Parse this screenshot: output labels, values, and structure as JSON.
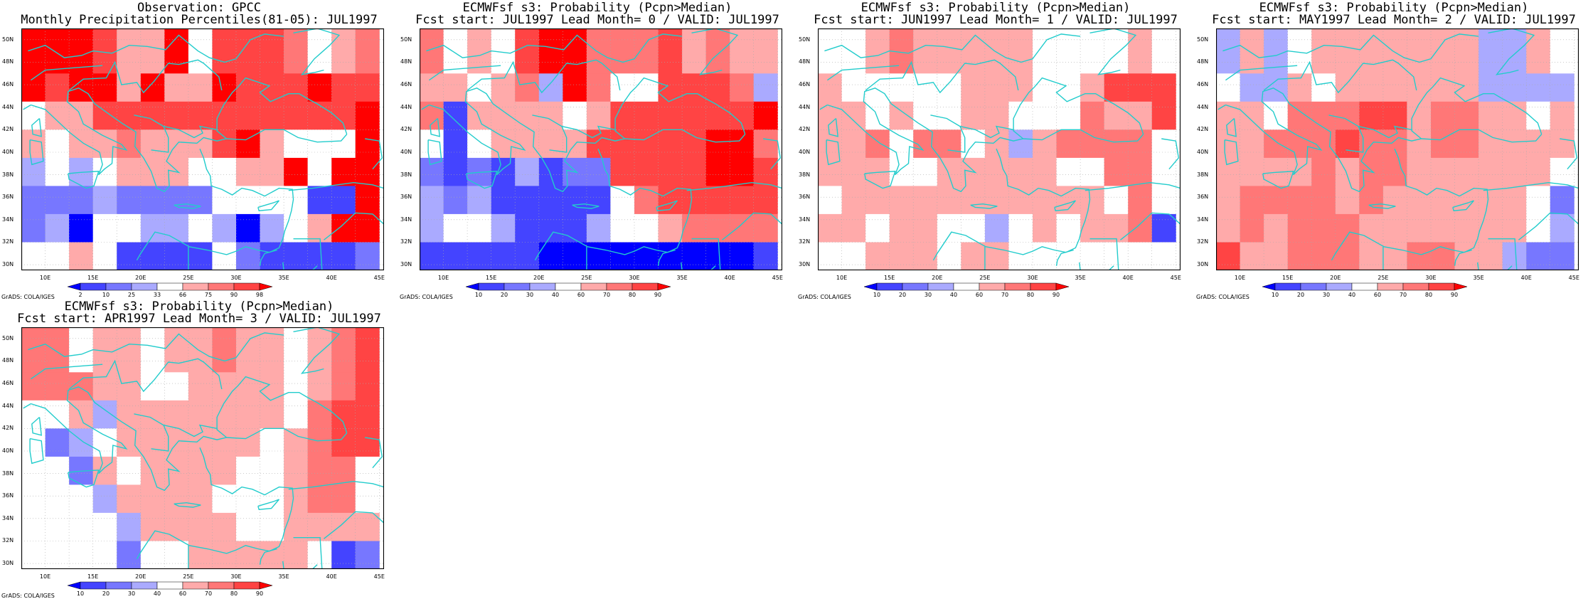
{
  "map_meta": {
    "lon_labels": [
      "10E",
      "15E",
      "20E",
      "25E",
      "30E",
      "35E",
      "40E",
      "45E"
    ],
    "lat_labels": [
      "50N",
      "48N",
      "46N",
      "44N",
      "42N",
      "40N",
      "38N",
      "36N",
      "34N",
      "32N",
      "30N"
    ],
    "credit": "GrADS: COLA/IGES",
    "cell_grid": {
      "columns": 15,
      "rows": 8,
      "lon_start_deg": 7.5,
      "lat_start_deg": 29.5
    }
  },
  "colorbars": {
    "observation": {
      "labels": [
        "2",
        "10",
        "25",
        "33",
        "66",
        "75",
        "90",
        "98"
      ],
      "colors": [
        "#0000ff",
        "#4444ff",
        "#7777ff",
        "#aaaaff",
        "#ffffff",
        "#ffaaaa",
        "#ff7777",
        "#ff4444",
        "#ff0000"
      ]
    },
    "probability": {
      "labels": [
        "10",
        "20",
        "30",
        "40",
        "60",
        "70",
        "80",
        "90"
      ],
      "colors": [
        "#0000ff",
        "#4444ff",
        "#7777ff",
        "#aaaaff",
        "#ffffff",
        "#ffaaaa",
        "#ff7777",
        "#ff4444",
        "#ff0000"
      ]
    }
  },
  "panels": [
    {
      "title1": "Observation: GPCC",
      "title2": "Monthly Precipitation Percentiles(81-05): JUL1997",
      "colorbar": "observation",
      "grid": [
        "888755847776456",
        "878858558777877",
        "455777777777778",
        "545565557854448",
        "343455544558488",
        "222322224444118",
        "230443343034588",
        "445411114211112"
      ]
    },
    {
      "title1": "ECMWFsf s3: Probability (Pcpn>Median)",
      "title2": "Fcst start: JUL1997  Lead Month= 0 / VALID: JUL1997",
      "colorbar": "probability",
      "grid": [
        "645478866675655",
        "554563864477763",
        "615555457777778",
        "414555577777886",
        "212131227777887",
        "323111114677777",
        "344311134456666",
        "111110000000001"
      ]
    },
    {
      "title1": "ECMWFsf s3: Probability (Pcpn>Median)",
      "title2": "Fcst start: JUN1997  Lead Month= 1 / VALID: JUL1997",
      "colorbar": "probability",
      "grid": [
        "445655555444454",
        "544444555445777",
        "554544554446557",
        "556466453566664",
        "555445555544664",
        "455555555555464",
        "554554434545561",
        "445554554444444"
      ]
    },
    {
      "title1": "ECMWFsf s3: Probability (Pcpn>Median)",
      "title2": "Fcst start: MAY1997  Lead Month= 2 / VALID: JUL1997",
      "colorbar": "probability",
      "grid": [
        "353455555553354",
        "433545555553333",
        "554666775665545",
        "556667665665555",
        "555565665555554",
        "566665655555542",
        "565666555555543",
        "755666556655322"
      ]
    },
    {
      "title1": "ECMWFsf s3: Probability (Pcpn>Median)",
      "title2": "Fcst start: APR1997  Lead Month= 3 / VALID: JUL1997",
      "colorbar": "probability",
      "grid": [
        "664554556554567",
        "666554455554567",
        "445355555554677",
        "423455555545677",
        "442545555445664",
        "444355554445664",
        "444435555445555",
        "444424455555412"
      ]
    }
  ]
}
